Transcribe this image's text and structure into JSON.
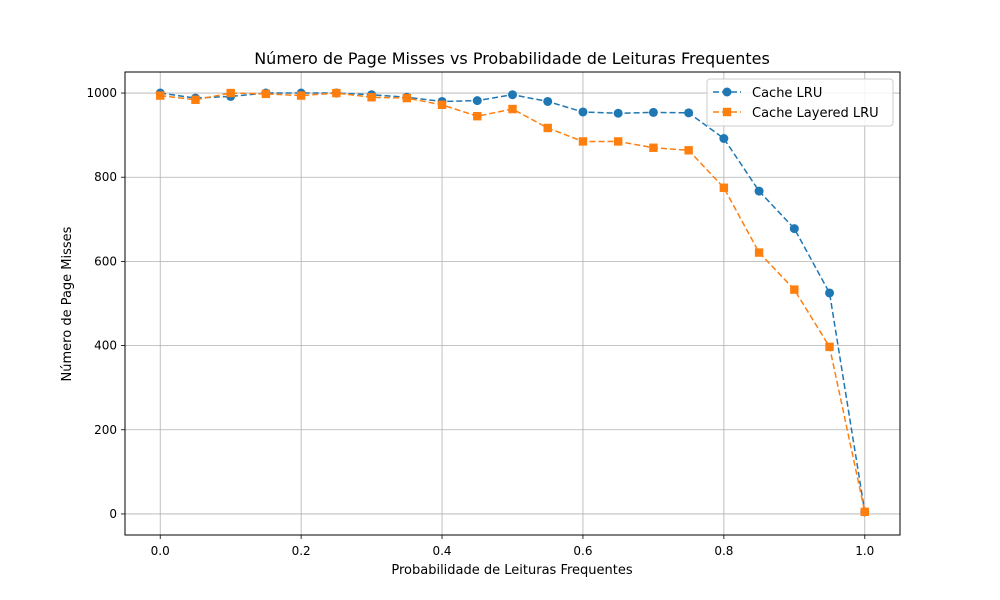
{
  "chart_data": {
    "type": "line",
    "title": "Número de Page Misses vs Probabilidade de Leituras Frequentes",
    "xlabel": "Probabilidade de Leituras Frequentes",
    "ylabel": "Número de Page Misses",
    "xlim": [
      -0.05,
      1.05
    ],
    "ylim": [
      -50,
      1050
    ],
    "xticks": [
      "0.0",
      "0.2",
      "0.4",
      "0.6",
      "0.8",
      "1.0"
    ],
    "yticks": [
      "0",
      "200",
      "400",
      "600",
      "800",
      "1000"
    ],
    "grid": true,
    "legend_position": "upper right",
    "x": [
      0.0,
      0.05,
      0.1,
      0.15,
      0.2,
      0.25,
      0.3,
      0.35,
      0.4,
      0.45,
      0.5,
      0.55,
      0.6,
      0.65,
      0.7,
      0.75,
      0.8,
      0.85,
      0.9,
      0.95,
      1.0
    ],
    "series": [
      {
        "name": "Cache LRU",
        "color": "#1f77b4",
        "marker": "circle",
        "values": [
          1000,
          988,
          992,
          1000,
          1000,
          1000,
          996,
          990,
          980,
          982,
          996,
          980,
          955,
          952,
          954,
          953,
          892,
          767,
          678,
          525,
          5
        ]
      },
      {
        "name": "Cache Layered LRU",
        "color": "#ff7f0e",
        "marker": "square",
        "values": [
          994,
          984,
          1000,
          998,
          994,
          1000,
          990,
          988,
          972,
          945,
          962,
          917,
          885,
          885,
          870,
          864,
          775,
          621,
          533,
          397,
          5
        ]
      }
    ]
  }
}
